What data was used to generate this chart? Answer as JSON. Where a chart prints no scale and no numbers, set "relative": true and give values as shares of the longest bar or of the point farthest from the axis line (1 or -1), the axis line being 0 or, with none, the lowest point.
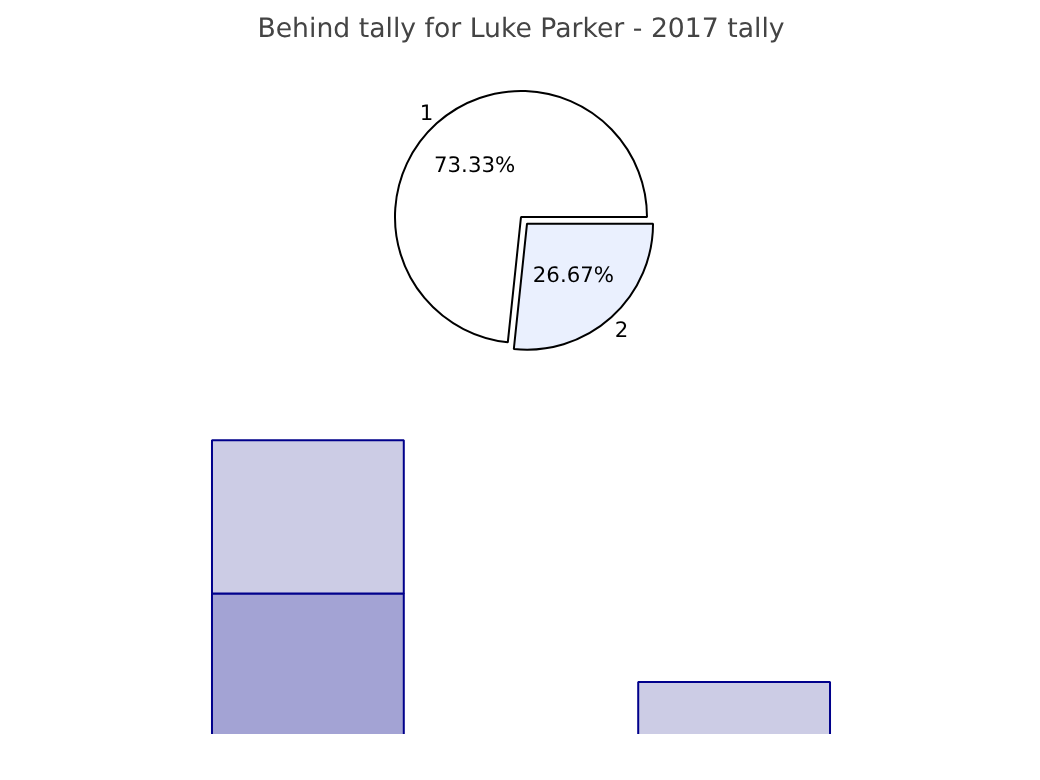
{
  "chart_data": [
    {
      "type": "pie",
      "title": "Behind tally for Luke Parker - 2017 tally",
      "categories": [
        "1",
        "2"
      ],
      "values": [
        73.33,
        26.67
      ],
      "colors": [
        "#ffffff",
        "#eaf0fe"
      ],
      "value_labels": [
        "73.33%",
        "26.67%"
      ]
    },
    {
      "type": "bar",
      "relative": true,
      "stacked": true,
      "categories": [
        null,
        null
      ],
      "series": [
        {
          "color": "#a3a3d4",
          "values": [
            0.48,
            0
          ]
        },
        {
          "color": "#cccce5",
          "values": [
            0.52,
            0.18
          ]
        }
      ]
    }
  ]
}
